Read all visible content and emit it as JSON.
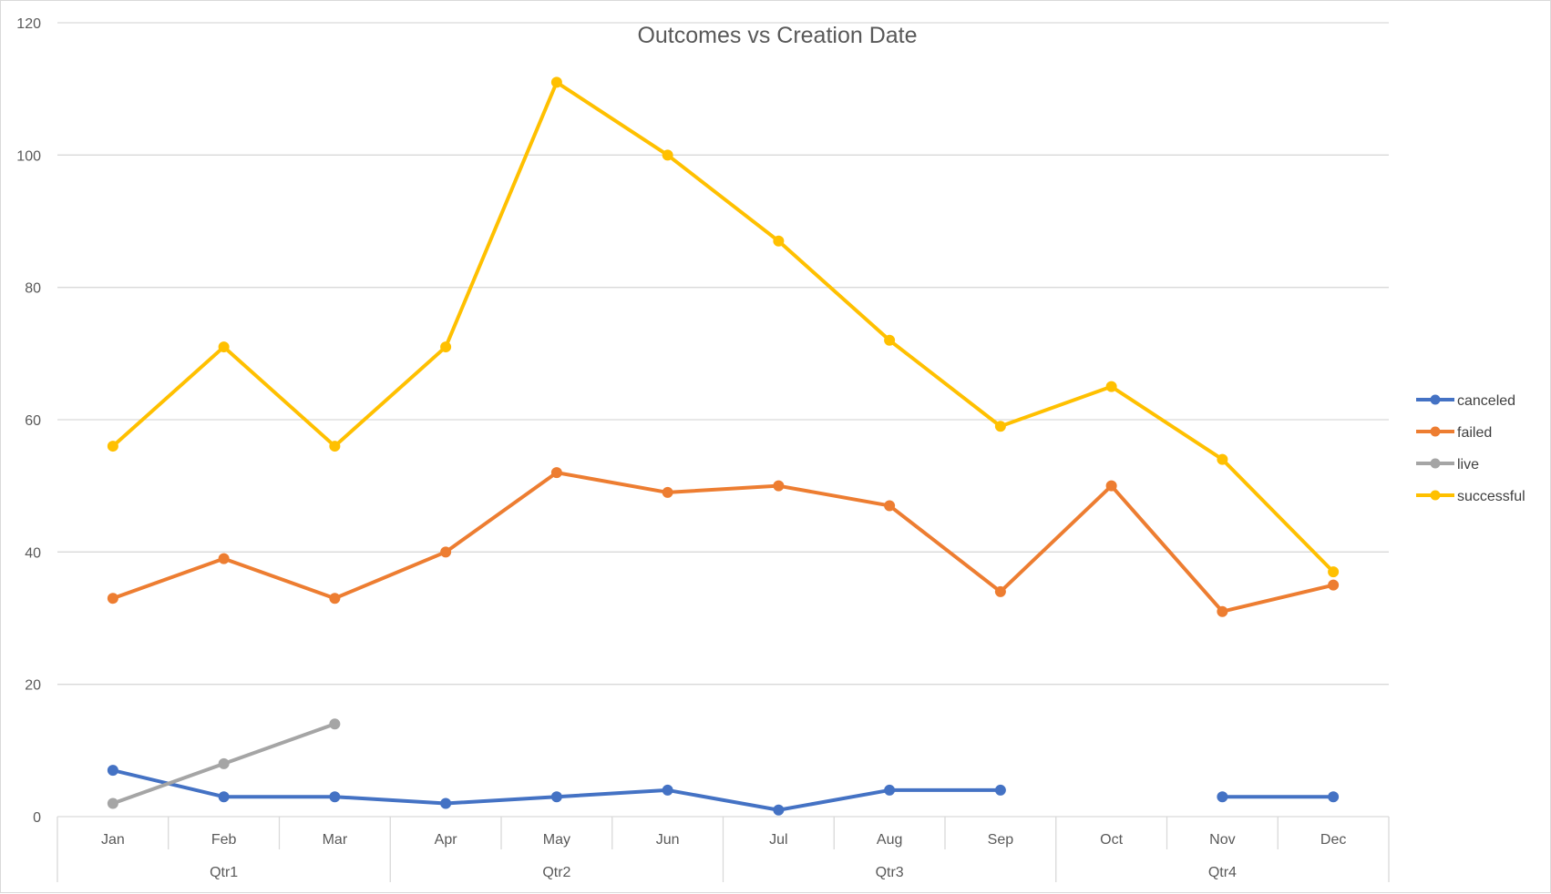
{
  "chart_data": {
    "type": "line",
    "title": "Outcomes vs Creation Date",
    "xlabel": "",
    "ylabel": "",
    "ylim": [
      0,
      120
    ],
    "yticks": [
      0,
      20,
      40,
      60,
      80,
      100,
      120
    ],
    "categories": [
      "Jan",
      "Feb",
      "Mar",
      "Apr",
      "May",
      "Jun",
      "Jul",
      "Aug",
      "Sep",
      "Oct",
      "Nov",
      "Dec"
    ],
    "groups": [
      {
        "label": "Qtr1",
        "span": 3
      },
      {
        "label": "Qtr2",
        "span": 3
      },
      {
        "label": "Qtr3",
        "span": 3
      },
      {
        "label": "Qtr4",
        "span": 3
      }
    ],
    "grid": true,
    "legend_position": "right",
    "series": [
      {
        "name": "canceled",
        "color": "#4472C4",
        "values": [
          7,
          3,
          3,
          2,
          3,
          4,
          1,
          4,
          4,
          null,
          3,
          3
        ]
      },
      {
        "name": "failed",
        "color": "#ED7D31",
        "values": [
          33,
          39,
          33,
          40,
          52,
          49,
          50,
          47,
          34,
          50,
          31,
          35
        ]
      },
      {
        "name": "live",
        "color": "#A5A5A5",
        "values": [
          2,
          8,
          14,
          null,
          null,
          null,
          null,
          null,
          null,
          null,
          null,
          null
        ]
      },
      {
        "name": "successful",
        "color": "#FFC000",
        "values": [
          56,
          71,
          56,
          71,
          111,
          100,
          87,
          72,
          59,
          65,
          54,
          37
        ]
      }
    ]
  }
}
